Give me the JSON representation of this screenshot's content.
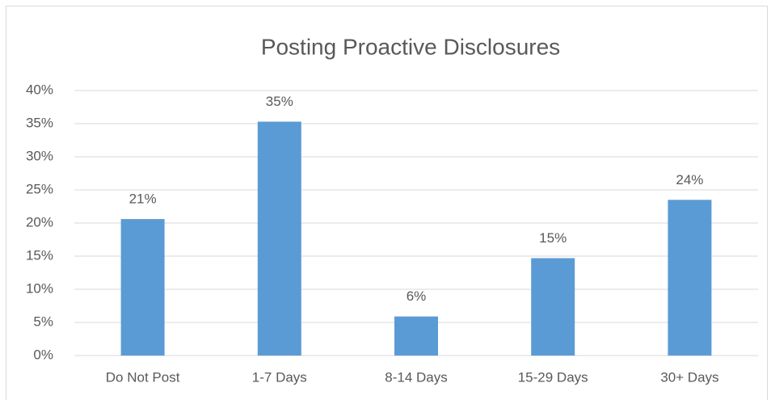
{
  "chart_data": {
    "type": "bar",
    "title": "Posting Proactive Disclosures",
    "categories": [
      "Do Not Post",
      "1-7 Days",
      "8-14 Days",
      "15-29 Days",
      "30+ Days"
    ],
    "values": [
      20.6,
      35.3,
      5.9,
      14.7,
      23.5
    ],
    "value_labels": [
      "21%",
      "35%",
      "6%",
      "15%",
      "24%"
    ],
    "color": "#5b9bd5",
    "ylim": [
      0,
      40
    ],
    "yticks": [
      {
        "value": 0,
        "label": "0%"
      },
      {
        "value": 5,
        "label": "5%"
      },
      {
        "value": 10,
        "label": "10%"
      },
      {
        "value": 15,
        "label": "15%"
      },
      {
        "value": 20,
        "label": "20%"
      },
      {
        "value": 25,
        "label": "25%"
      },
      {
        "value": 30,
        "label": "30%"
      },
      {
        "value": 35,
        "label": "35%"
      },
      {
        "value": 40,
        "label": "40%"
      }
    ],
    "grid": true
  }
}
